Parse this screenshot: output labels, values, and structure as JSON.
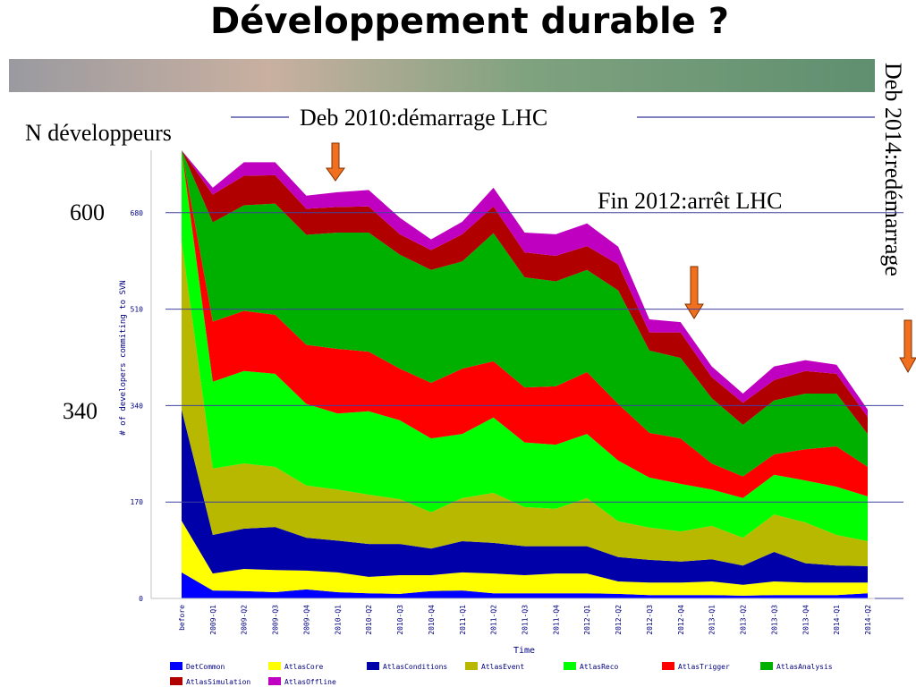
{
  "title": "Développement durable ?",
  "y_caption": "N développeurs",
  "level_labels": [
    "600",
    "340"
  ],
  "annotations": [
    "Deb 2010:démarrage LHC",
    "Fin 2012:arrêt LHC",
    "Deb 2014:redémarrage"
  ],
  "chart_data": {
    "type": "stacked-area",
    "x_label": "Time",
    "y_label": "# of developers commiting to SVN",
    "categories": [
      "before",
      "2009-Q1",
      "2009-Q2",
      "2009-Q3",
      "2009-Q4",
      "2010-Q1",
      "2010-Q2",
      "2010-Q3",
      "2010-Q4",
      "2011-Q1",
      "2011-Q2",
      "2011-Q3",
      "2011-Q4",
      "2012-Q1",
      "2012-Q2",
      "2012-Q3",
      "2012-Q4",
      "2013-Q1",
      "2013-Q2",
      "2013-Q3",
      "2013-Q4",
      "2014-Q1",
      "2014-Q2"
    ],
    "ylim": [
      0,
      790
    ],
    "yticks": [
      0,
      170,
      340,
      510,
      680
    ],
    "grid": true,
    "series": [
      {
        "name": "DetCommon",
        "color": "#0000ff",
        "values": [
          46,
          14,
          13,
          11,
          16,
          11,
          9,
          8,
          13,
          14,
          9,
          9,
          9,
          9,
          8,
          6,
          6,
          6,
          5,
          6,
          6,
          6,
          9
        ]
      },
      {
        "name": "AtlasCore",
        "color": "#ffff00",
        "values": [
          91,
          30,
          39,
          39,
          33,
          35,
          29,
          33,
          28,
          32,
          35,
          32,
          35,
          35,
          22,
          22,
          22,
          24,
          19,
          24,
          22,
          22,
          19
        ]
      },
      {
        "name": "AtlasConditions",
        "color": "#0000a8",
        "values": [
          196,
          68,
          71,
          76,
          58,
          56,
          58,
          55,
          47,
          55,
          54,
          51,
          48,
          48,
          43,
          40,
          37,
          39,
          34,
          52,
          34,
          30,
          29
        ]
      },
      {
        "name": "AtlasEvent",
        "color": "#b8b800",
        "values": [
          297,
          117,
          115,
          106,
          92,
          90,
          87,
          79,
          64,
          76,
          88,
          69,
          66,
          85,
          63,
          57,
          53,
          59,
          49,
          66,
          72,
          54,
          44
        ]
      },
      {
        "name": "AtlasReco",
        "color": "#00ff00",
        "values": [
          160,
          153,
          163,
          164,
          144,
          134,
          147,
          139,
          130,
          113,
          133,
          114,
          113,
          113,
          107,
          88,
          84,
          64,
          70,
          70,
          74,
          85,
          79
        ]
      },
      {
        "name": "AtlasTrigger",
        "color": "#ff0000",
        "values": [
          0,
          106,
          106,
          104,
          104,
          114,
          105,
          91,
          98,
          115,
          99,
          97,
          103,
          109,
          100,
          79,
          80,
          46,
          38,
          36,
          55,
          71,
          52
        ]
      },
      {
        "name": "AtlasAnalysis",
        "color": "#00b000",
        "values": [
          0,
          175,
          186,
          196,
          194,
          205,
          210,
          201,
          199,
          189,
          226,
          194,
          185,
          180,
          200,
          145,
          142,
          115,
          91,
          95,
          98,
          93,
          58
        ]
      },
      {
        "name": "AtlasSimulation",
        "color": "#b00000",
        "values": [
          0,
          49,
          52,
          50,
          46,
          45,
          46,
          36,
          35,
          48,
          47,
          44,
          45,
          42,
          46,
          32,
          45,
          37,
          39,
          36,
          40,
          35,
          30
        ]
      },
      {
        "name": "AtlasOffline",
        "color": "#c000c0",
        "values": [
          0,
          12,
          24,
          23,
          23,
          26,
          29,
          29,
          19,
          22,
          33,
          35,
          38,
          40,
          31,
          23,
          18,
          19,
          16,
          24,
          19,
          16,
          13
        ]
      }
    ]
  }
}
